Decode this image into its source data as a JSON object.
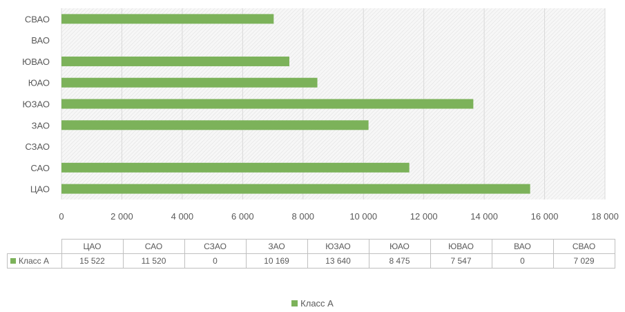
{
  "chart_data": {
    "type": "bar",
    "orientation": "horizontal",
    "categories": [
      "ЦАО",
      "САО",
      "СЗАО",
      "ЗАО",
      "ЮЗАО",
      "ЮАО",
      "ЮВАО",
      "ВАО",
      "СВАО"
    ],
    "series": [
      {
        "name": "Класс А",
        "values": [
          15522,
          11520,
          0,
          10169,
          13640,
          8475,
          7547,
          0,
          7029
        ]
      }
    ],
    "value_labels": [
      "15 522",
      "11 520",
      "0",
      "10 169",
      "13 640",
      "8 475",
      "7 547",
      "0",
      "7 029"
    ],
    "xlim": [
      0,
      18000
    ],
    "xticks": [
      0,
      2000,
      4000,
      6000,
      8000,
      10000,
      12000,
      14000,
      16000,
      18000
    ],
    "xtick_labels": [
      "0",
      "2 000",
      "4 000",
      "6 000",
      "8 000",
      "10 000",
      "12 000",
      "14 000",
      "16 000",
      "18 000"
    ],
    "grid": true,
    "legend_position": "bottom",
    "data_table": true,
    "bar_color": "#7cb25a"
  }
}
